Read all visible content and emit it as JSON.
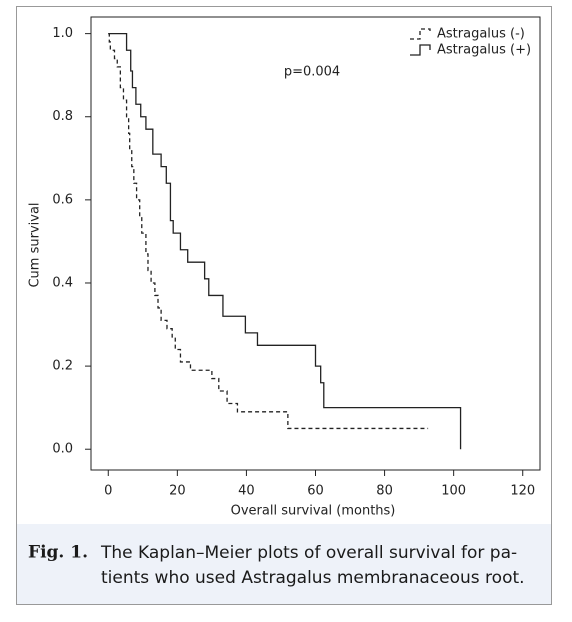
{
  "chart_data": {
    "type": "step",
    "xlabel": "Overall survival (months)",
    "ylabel": "Cum survival",
    "annotation": "p=0.004",
    "legend": "upper right",
    "xlim": [
      -5,
      125
    ],
    "ylim": [
      -0.05,
      1.04
    ],
    "xticks": [
      0,
      20,
      40,
      60,
      80,
      100,
      120
    ],
    "yticks": [
      {
        "value": 0.0,
        "label": "0.0"
      },
      0.2,
      0.4,
      0.6,
      0.8,
      {
        "value": 1.0,
        "label": "1.0"
      }
    ],
    "series": [
      {
        "name": "Astragalus (-)",
        "color": "#222222",
        "linestyle": "dashed",
        "x": [
          0,
          0.3,
          0.6,
          1.8,
          2.6,
          3.5,
          4.4,
          5.3,
          5.9,
          6.2,
          6.8,
          7.4,
          8.2,
          9.1,
          9.7,
          10.9,
          11.5,
          12.4,
          13.5,
          14.4,
          15.3,
          17,
          18.5,
          19.4,
          20.9,
          23.8,
          30,
          32,
          34.4,
          37.4,
          52,
          92.6
        ],
        "values": [
          1.0,
          0.98,
          0.96,
          0.94,
          0.92,
          0.87,
          0.84,
          0.8,
          0.76,
          0.72,
          0.68,
          0.64,
          0.6,
          0.56,
          0.52,
          0.47,
          0.43,
          0.4,
          0.37,
          0.34,
          0.31,
          0.29,
          0.27,
          0.24,
          0.21,
          0.19,
          0.17,
          0.14,
          0.11,
          0.09,
          0.05,
          0.05
        ]
      },
      {
        "name": "Astragalus (+)",
        "color": "#222222",
        "linestyle": "solid",
        "x": [
          0,
          5.3,
          6.5,
          7,
          8,
          9.4,
          10.9,
          12.9,
          15.3,
          16.8,
          18,
          18.8,
          20.9,
          23,
          27.9,
          29.1,
          33.2,
          39.7,
          43.2,
          60,
          61.5,
          62.4,
          102,
          102
        ],
        "values": [
          1.0,
          0.96,
          0.91,
          0.87,
          0.83,
          0.8,
          0.77,
          0.71,
          0.68,
          0.64,
          0.55,
          0.52,
          0.48,
          0.45,
          0.41,
          0.37,
          0.32,
          0.28,
          0.25,
          0.2,
          0.16,
          0.1,
          0.1,
          0.0
        ]
      }
    ]
  },
  "caption": {
    "label": "Fig. 1.",
    "lines": [
      "The Kaplan–Meier plots of overall survival for pa-",
      "tients who used Astragalus membranaceous root."
    ]
  }
}
